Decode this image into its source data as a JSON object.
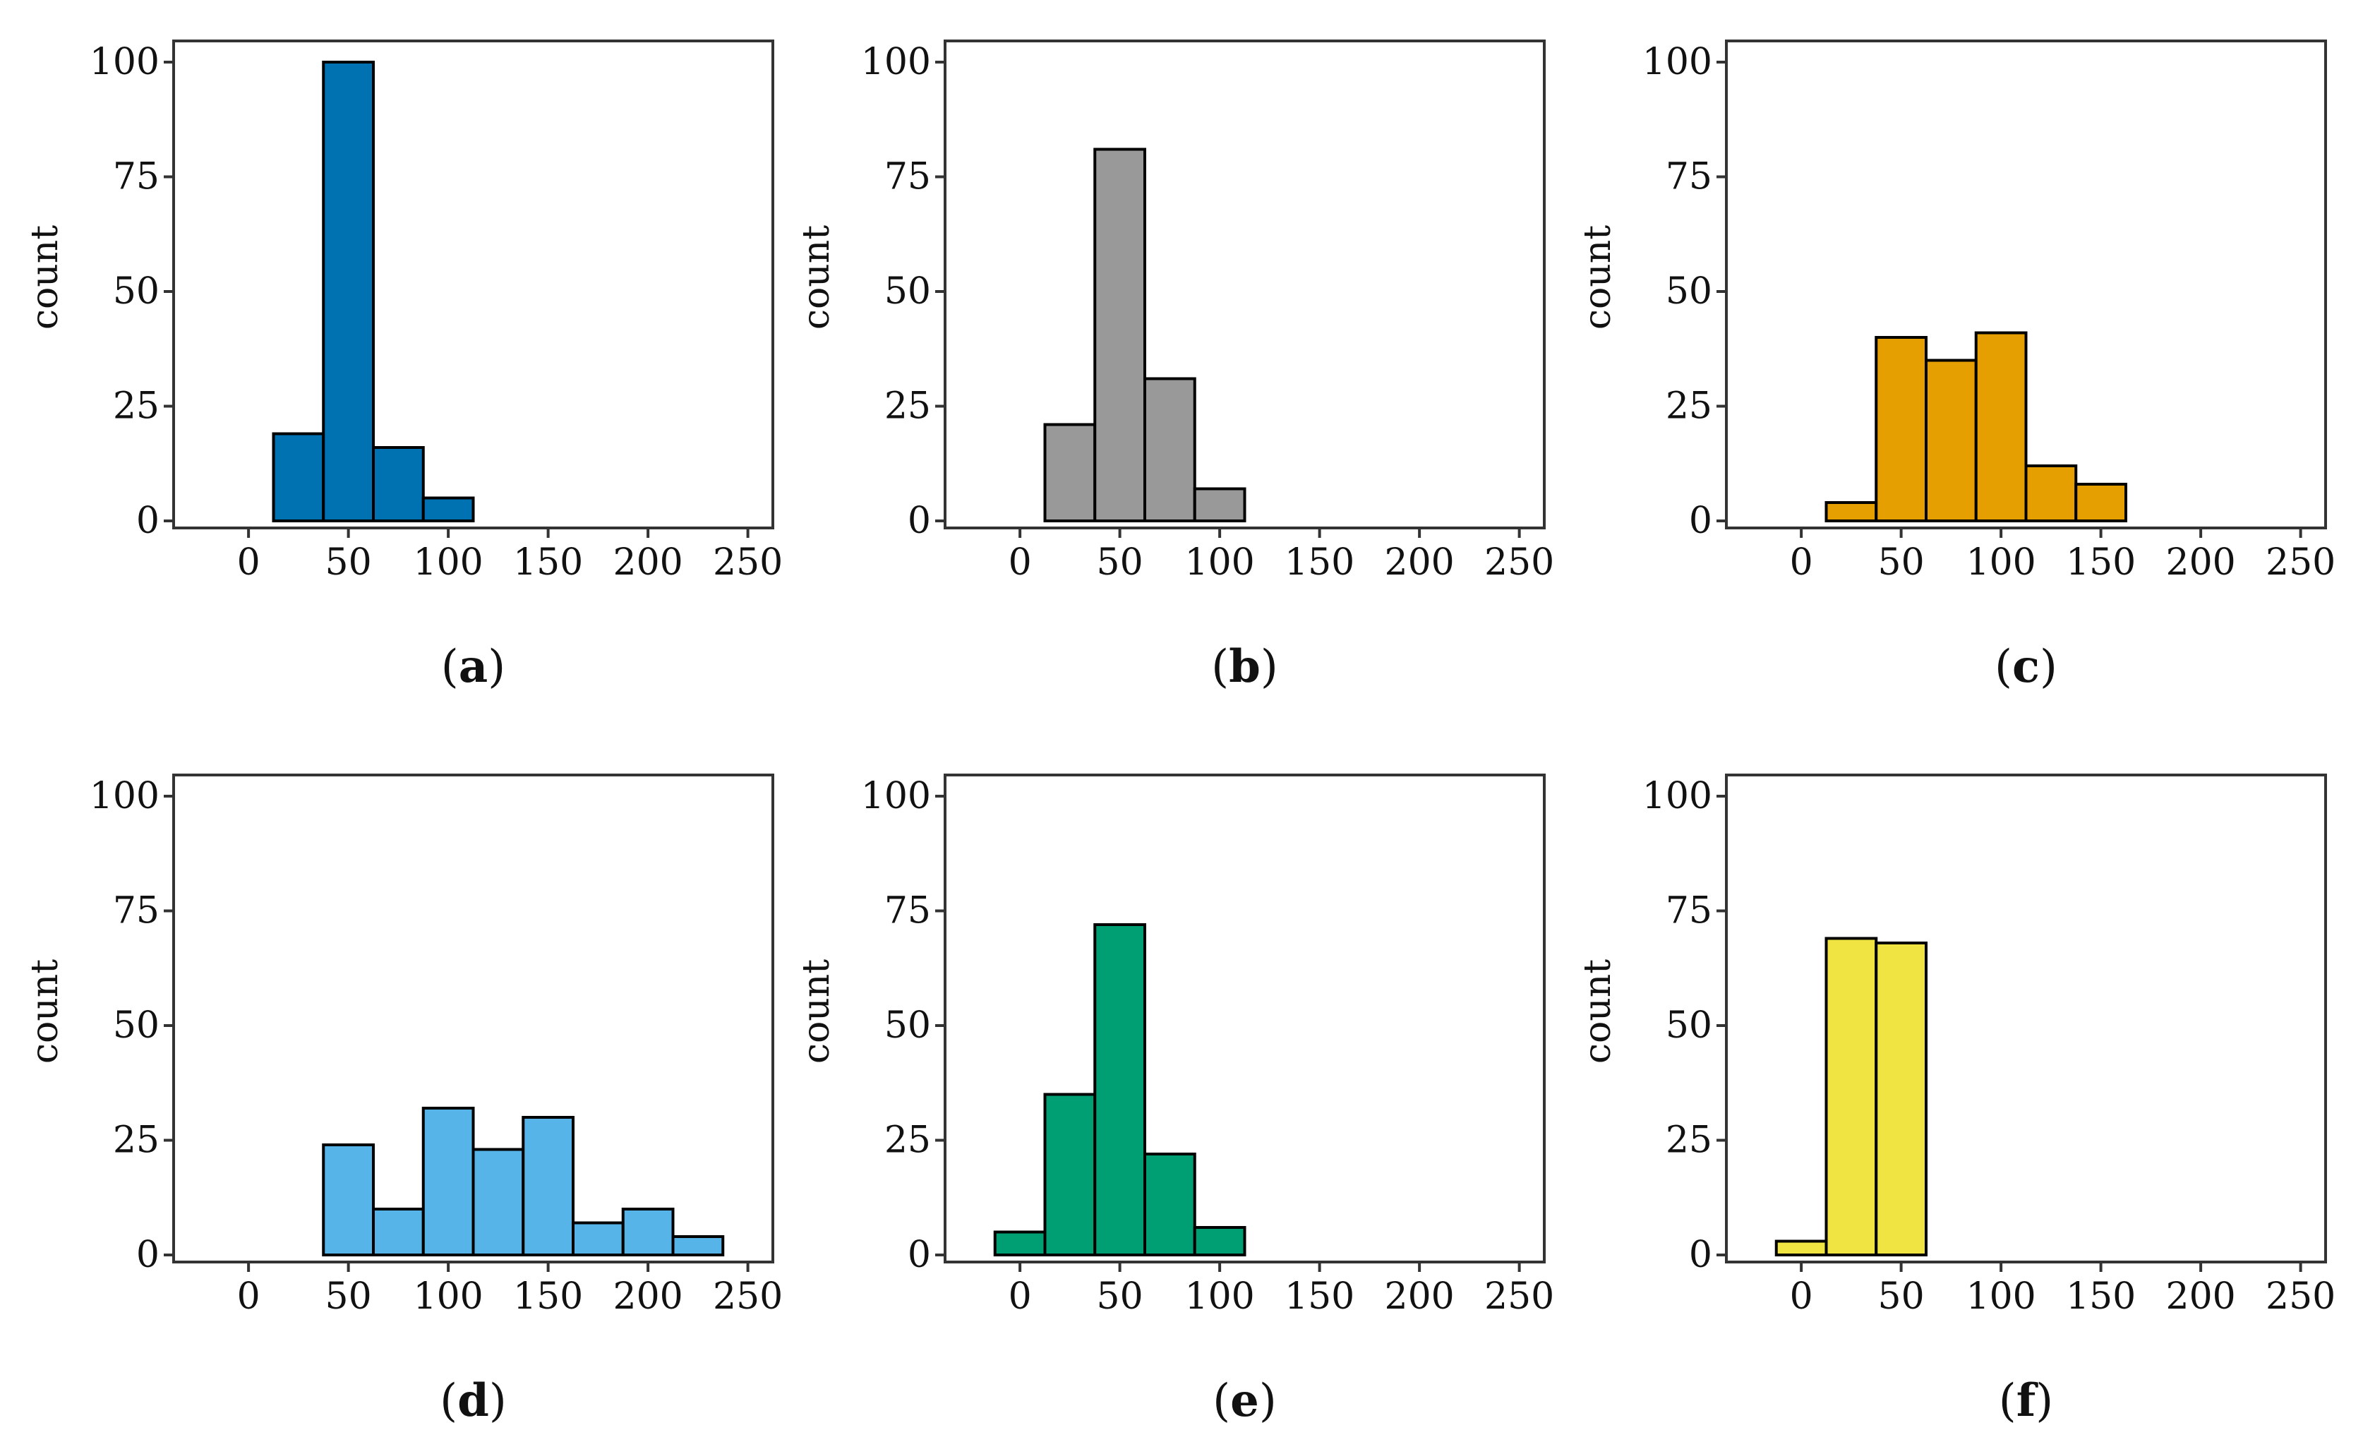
{
  "chart_data": [
    {
      "panel": "a",
      "caption": "a",
      "type": "bar",
      "ylabel": "count",
      "xlabel": "",
      "color": "#0072B2",
      "xlim": [
        -37.5,
        262.5
      ],
      "ylim": [
        0,
        100
      ],
      "xticks": [
        0,
        50,
        100,
        150,
        200,
        250
      ],
      "yticks": [
        0,
        25,
        50,
        75,
        100
      ],
      "bin_width": 25,
      "bins": [
        {
          "start": 12.5,
          "count": 19
        },
        {
          "start": 37.5,
          "count": 100
        },
        {
          "start": 62.5,
          "count": 16
        },
        {
          "start": 87.5,
          "count": 5
        }
      ]
    },
    {
      "panel": "b",
      "caption": "b",
      "type": "bar",
      "ylabel": "count",
      "xlabel": "",
      "color": "#999999",
      "xlim": [
        -37.5,
        262.5
      ],
      "ylim": [
        0,
        100
      ],
      "xticks": [
        0,
        50,
        100,
        150,
        200,
        250
      ],
      "yticks": [
        0,
        25,
        50,
        75,
        100
      ],
      "bin_width": 25,
      "bins": [
        {
          "start": 12.5,
          "count": 21
        },
        {
          "start": 37.5,
          "count": 81
        },
        {
          "start": 62.5,
          "count": 31
        },
        {
          "start": 87.5,
          "count": 7
        }
      ]
    },
    {
      "panel": "c",
      "caption": "c",
      "type": "bar",
      "ylabel": "count",
      "xlabel": "",
      "color": "#E69F00",
      "xlim": [
        -37.5,
        262.5
      ],
      "ylim": [
        0,
        100
      ],
      "xticks": [
        0,
        50,
        100,
        150,
        200,
        250
      ],
      "yticks": [
        0,
        25,
        50,
        75,
        100
      ],
      "bin_width": 25,
      "bins": [
        {
          "start": 12.5,
          "count": 4
        },
        {
          "start": 37.5,
          "count": 40
        },
        {
          "start": 62.5,
          "count": 35
        },
        {
          "start": 87.5,
          "count": 41
        },
        {
          "start": 112.5,
          "count": 12
        },
        {
          "start": 137.5,
          "count": 8
        }
      ]
    },
    {
      "panel": "d",
      "caption": "d",
      "type": "bar",
      "ylabel": "count",
      "xlabel": "",
      "color": "#56B4E9",
      "xlim": [
        -37.5,
        262.5
      ],
      "ylim": [
        0,
        100
      ],
      "xticks": [
        0,
        50,
        100,
        150,
        200,
        250
      ],
      "yticks": [
        0,
        25,
        50,
        75,
        100
      ],
      "bin_width": 25,
      "bins": [
        {
          "start": 37.5,
          "count": 24
        },
        {
          "start": 62.5,
          "count": 10
        },
        {
          "start": 87.5,
          "count": 32
        },
        {
          "start": 112.5,
          "count": 23
        },
        {
          "start": 137.5,
          "count": 30
        },
        {
          "start": 162.5,
          "count": 7
        },
        {
          "start": 187.5,
          "count": 10
        },
        {
          "start": 212.5,
          "count": 4
        }
      ]
    },
    {
      "panel": "e",
      "caption": "e",
      "type": "bar",
      "ylabel": "count",
      "xlabel": "",
      "color": "#009E73",
      "xlim": [
        -37.5,
        262.5
      ],
      "ylim": [
        0,
        100
      ],
      "xticks": [
        0,
        50,
        100,
        150,
        200,
        250
      ],
      "yticks": [
        0,
        25,
        50,
        75,
        100
      ],
      "bin_width": 25,
      "bins": [
        {
          "start": -12.5,
          "count": 5
        },
        {
          "start": 12.5,
          "count": 35
        },
        {
          "start": 37.5,
          "count": 72
        },
        {
          "start": 62.5,
          "count": 22
        },
        {
          "start": 87.5,
          "count": 6
        }
      ]
    },
    {
      "panel": "f",
      "caption": "f",
      "type": "bar",
      "ylabel": "count",
      "xlabel": "",
      "color": "#F0E442",
      "xlim": [
        -37.5,
        262.5
      ],
      "ylim": [
        0,
        100
      ],
      "xticks": [
        0,
        50,
        100,
        150,
        200,
        250
      ],
      "yticks": [
        0,
        25,
        50,
        75,
        100
      ],
      "bin_width": 25,
      "bins": [
        {
          "start": -12.5,
          "count": 3
        },
        {
          "start": 12.5,
          "count": 69
        },
        {
          "start": 37.5,
          "count": 68
        }
      ]
    }
  ]
}
